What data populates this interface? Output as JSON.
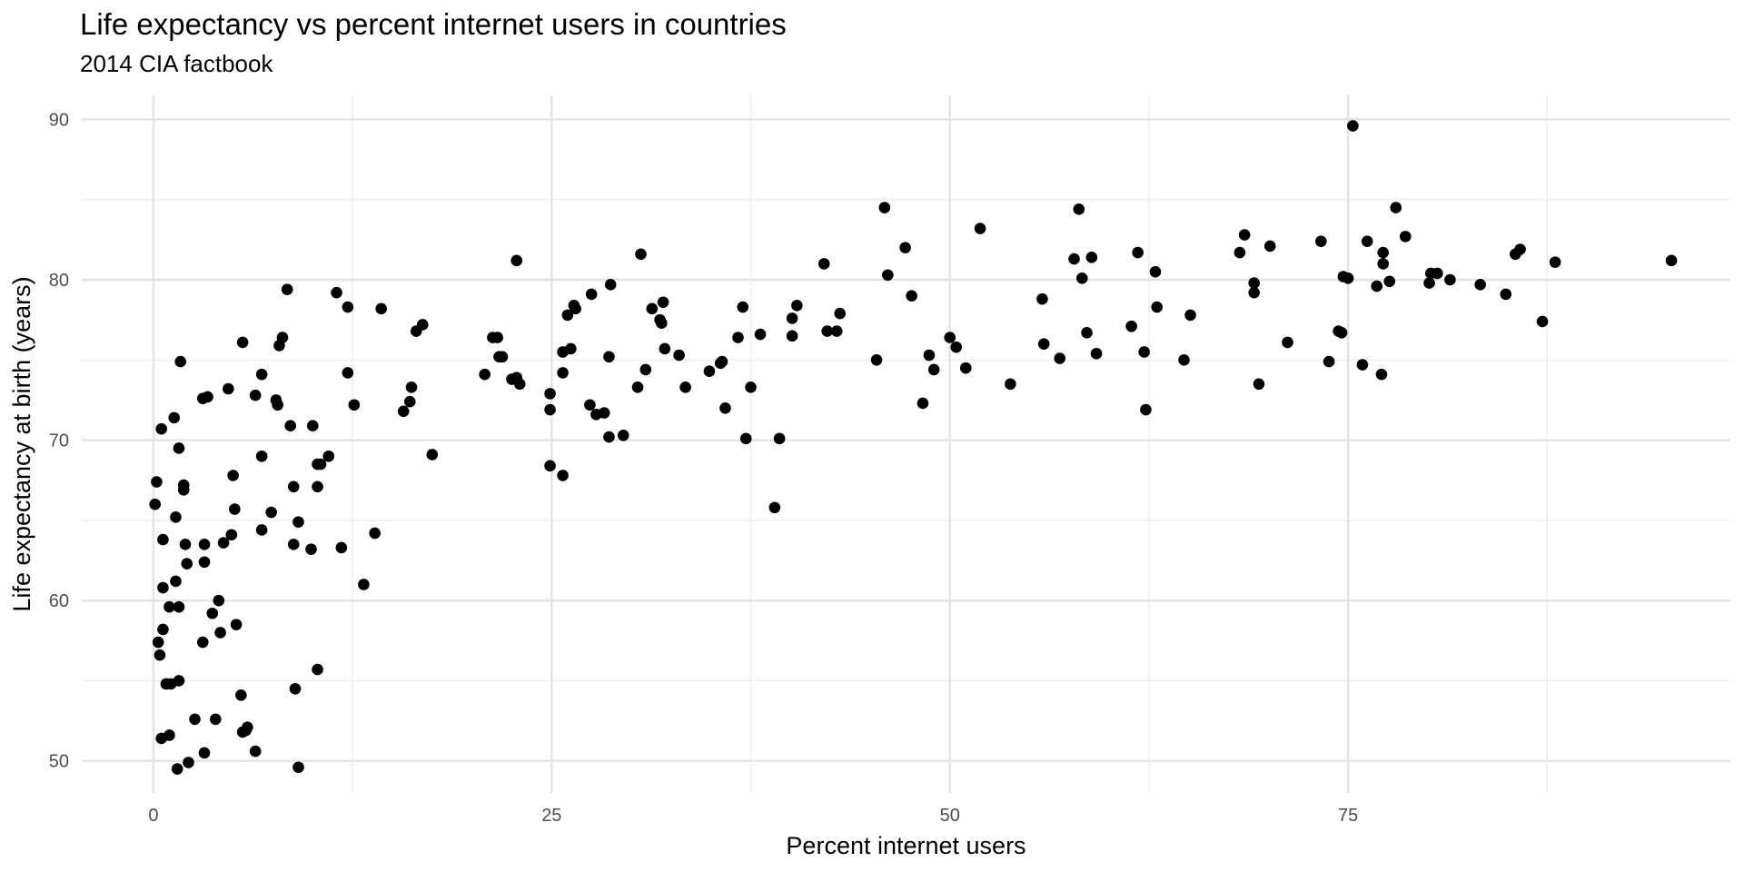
{
  "chart_data": {
    "type": "scatter",
    "title": "Life expectancy vs percent internet users in countries",
    "subtitle": "2014 CIA factbook",
    "xlabel": "Percent internet users",
    "ylabel": "Life expectancy at birth (years)",
    "xlim": [
      -4.5,
      99
    ],
    "ylim": [
      48,
      91.5
    ],
    "x_ticks": [
      0,
      25,
      50,
      75
    ],
    "x_tick_labels": [
      "0",
      "25",
      "50",
      "75"
    ],
    "y_ticks": [
      50,
      60,
      70,
      80,
      90
    ],
    "y_tick_labels": [
      "50",
      "60",
      "70",
      "80",
      "90"
    ],
    "grid": true,
    "legend": "none",
    "point_color": "#000000",
    "points": [
      [
        0.2,
        67.4
      ],
      [
        0.1,
        66.0
      ],
      [
        0.3,
        57.4
      ],
      [
        0.4,
        56.6
      ],
      [
        0.6,
        58.2
      ],
      [
        0.5,
        70.7
      ],
      [
        0.6,
        63.8
      ],
      [
        0.6,
        60.8
      ],
      [
        0.5,
        51.4
      ],
      [
        0.8,
        54.8
      ],
      [
        1.0,
        59.6
      ],
      [
        1.1,
        54.8
      ],
      [
        1.0,
        51.6
      ],
      [
        1.3,
        71.4
      ],
      [
        1.4,
        65.2
      ],
      [
        1.4,
        61.2
      ],
      [
        1.6,
        69.5
      ],
      [
        1.6,
        59.6
      ],
      [
        1.6,
        55.0
      ],
      [
        1.5,
        49.5
      ],
      [
        1.7,
        74.9
      ],
      [
        1.9,
        67.2
      ],
      [
        1.9,
        66.9
      ],
      [
        2.0,
        63.5
      ],
      [
        2.1,
        62.3
      ],
      [
        2.2,
        49.9
      ],
      [
        2.6,
        52.6
      ],
      [
        3.1,
        72.6
      ],
      [
        3.4,
        72.7
      ],
      [
        3.2,
        63.5
      ],
      [
        3.2,
        62.4
      ],
      [
        3.1,
        57.4
      ],
      [
        3.2,
        50.5
      ],
      [
        3.7,
        59.2
      ],
      [
        3.9,
        52.6
      ],
      [
        4.1,
        60.0
      ],
      [
        4.2,
        58.0
      ],
      [
        4.4,
        63.6
      ],
      [
        4.7,
        73.2
      ],
      [
        4.9,
        64.1
      ],
      [
        5.0,
        67.8
      ],
      [
        5.1,
        65.7
      ],
      [
        5.2,
        58.5
      ],
      [
        5.6,
        76.1
      ],
      [
        5.5,
        54.1
      ],
      [
        5.6,
        51.8
      ],
      [
        5.9,
        52.1
      ],
      [
        5.8,
        51.9
      ],
      [
        6.4,
        72.8
      ],
      [
        6.4,
        50.6
      ],
      [
        6.8,
        74.1
      ],
      [
        6.8,
        69.0
      ],
      [
        6.8,
        64.4
      ],
      [
        7.4,
        65.5
      ],
      [
        7.7,
        72.5
      ],
      [
        7.8,
        72.2
      ],
      [
        7.9,
        75.9
      ],
      [
        8.1,
        76.4
      ],
      [
        8.4,
        79.4
      ],
      [
        8.6,
        70.9
      ],
      [
        8.8,
        67.1
      ],
      [
        8.8,
        63.5
      ],
      [
        8.9,
        54.5
      ],
      [
        9.1,
        64.9
      ],
      [
        9.1,
        49.6
      ],
      [
        9.9,
        63.2
      ],
      [
        10.0,
        70.9
      ],
      [
        10.3,
        68.5
      ],
      [
        10.3,
        67.1
      ],
      [
        10.3,
        55.7
      ],
      [
        10.5,
        68.5
      ],
      [
        11.0,
        69.0
      ],
      [
        11.5,
        79.2
      ],
      [
        11.8,
        63.3
      ],
      [
        12.2,
        74.2
      ],
      [
        12.2,
        78.3
      ],
      [
        12.6,
        72.2
      ],
      [
        13.2,
        61.0
      ],
      [
        13.9,
        64.2
      ],
      [
        14.3,
        78.2
      ],
      [
        15.7,
        71.8
      ],
      [
        16.1,
        72.4
      ],
      [
        16.2,
        73.3
      ],
      [
        16.5,
        76.8
      ],
      [
        16.9,
        77.2
      ],
      [
        17.5,
        69.1
      ],
      [
        20.8,
        74.1
      ],
      [
        21.3,
        76.4
      ],
      [
        21.6,
        76.4
      ],
      [
        21.7,
        75.2
      ],
      [
        21.9,
        75.2
      ],
      [
        22.5,
        73.8
      ],
      [
        22.8,
        73.9
      ],
      [
        22.8,
        81.2
      ],
      [
        23.0,
        73.5
      ],
      [
        24.9,
        68.4
      ],
      [
        24.9,
        72.9
      ],
      [
        24.9,
        71.9
      ],
      [
        25.7,
        67.8
      ],
      [
        25.7,
        75.5
      ],
      [
        25.7,
        74.2
      ],
      [
        26.0,
        77.8
      ],
      [
        26.2,
        75.7
      ],
      [
        26.4,
        78.4
      ],
      [
        26.5,
        78.2
      ],
      [
        27.4,
        72.2
      ],
      [
        27.5,
        79.1
      ],
      [
        27.8,
        71.6
      ],
      [
        28.3,
        71.7
      ],
      [
        28.6,
        75.2
      ],
      [
        28.6,
        70.2
      ],
      [
        28.7,
        79.7
      ],
      [
        29.5,
        70.3
      ],
      [
        30.4,
        73.3
      ],
      [
        30.6,
        81.6
      ],
      [
        30.9,
        74.4
      ],
      [
        31.3,
        78.2
      ],
      [
        31.8,
        77.5
      ],
      [
        31.9,
        77.3
      ],
      [
        32.0,
        78.6
      ],
      [
        32.1,
        75.7
      ],
      [
        33.0,
        75.3
      ],
      [
        33.4,
        73.3
      ],
      [
        34.9,
        74.3
      ],
      [
        35.6,
        74.8
      ],
      [
        35.7,
        74.9
      ],
      [
        35.9,
        72.0
      ],
      [
        36.7,
        76.4
      ],
      [
        37.0,
        78.3
      ],
      [
        37.2,
        70.1
      ],
      [
        37.5,
        73.3
      ],
      [
        38.1,
        76.6
      ],
      [
        39.0,
        65.8
      ],
      [
        39.3,
        70.1
      ],
      [
        40.1,
        76.5
      ],
      [
        40.1,
        77.6
      ],
      [
        40.4,
        78.4
      ],
      [
        42.1,
        81.0
      ],
      [
        42.3,
        76.8
      ],
      [
        42.9,
        76.8
      ],
      [
        43.1,
        77.9
      ],
      [
        45.4,
        75.0
      ],
      [
        45.9,
        84.5
      ],
      [
        46.1,
        80.3
      ],
      [
        47.2,
        82.0
      ],
      [
        47.6,
        79.0
      ],
      [
        48.3,
        72.3
      ],
      [
        48.7,
        75.3
      ],
      [
        49.0,
        74.4
      ],
      [
        50.0,
        76.4
      ],
      [
        50.4,
        75.8
      ],
      [
        51.0,
        74.5
      ],
      [
        51.9,
        83.2
      ],
      [
        53.8,
        73.5
      ],
      [
        55.8,
        78.8
      ],
      [
        55.9,
        76.0
      ],
      [
        56.9,
        75.1
      ],
      [
        57.8,
        81.3
      ],
      [
        58.1,
        84.4
      ],
      [
        58.3,
        80.1
      ],
      [
        58.6,
        76.7
      ],
      [
        58.9,
        81.4
      ],
      [
        59.2,
        75.4
      ],
      [
        61.4,
        77.1
      ],
      [
        61.8,
        81.7
      ],
      [
        62.2,
        75.5
      ],
      [
        62.3,
        71.9
      ],
      [
        62.9,
        80.5
      ],
      [
        63.0,
        78.3
      ],
      [
        64.7,
        75.0
      ],
      [
        65.1,
        77.8
      ],
      [
        68.2,
        81.7
      ],
      [
        68.5,
        82.8
      ],
      [
        69.1,
        79.8
      ],
      [
        69.1,
        79.2
      ],
      [
        69.4,
        73.5
      ],
      [
        70.1,
        82.1
      ],
      [
        71.2,
        76.1
      ],
      [
        73.3,
        82.4
      ],
      [
        73.8,
        74.9
      ],
      [
        74.4,
        76.8
      ],
      [
        74.6,
        76.7
      ],
      [
        74.7,
        80.2
      ],
      [
        75.0,
        80.1
      ],
      [
        75.3,
        89.6
      ],
      [
        75.9,
        74.7
      ],
      [
        76.2,
        82.4
      ],
      [
        76.8,
        79.6
      ],
      [
        77.2,
        81.7
      ],
      [
        77.2,
        81.0
      ],
      [
        77.6,
        79.9
      ],
      [
        77.1,
        74.1
      ],
      [
        78.0,
        84.5
      ],
      [
        78.6,
        82.7
      ],
      [
        80.2,
        80.4
      ],
      [
        80.1,
        79.8
      ],
      [
        80.6,
        80.4
      ],
      [
        81.4,
        80.0
      ],
      [
        83.3,
        79.7
      ],
      [
        84.9,
        79.1
      ],
      [
        85.5,
        81.6
      ],
      [
        85.8,
        81.9
      ],
      [
        87.2,
        77.4
      ],
      [
        88.0,
        81.1
      ],
      [
        95.3,
        81.2
      ]
    ]
  }
}
